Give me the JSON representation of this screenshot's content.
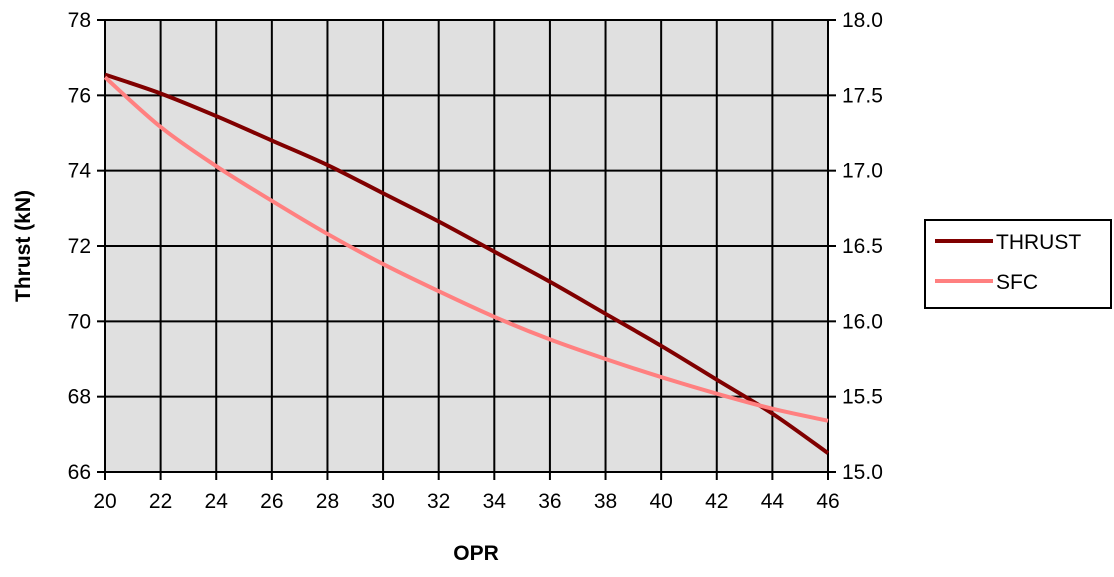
{
  "chart_data": {
    "type": "line",
    "xlabel": "OPR",
    "ylabel": "Thrust (kN)",
    "y2label": "",
    "xlim": [
      20,
      46
    ],
    "ylim": [
      66,
      78
    ],
    "y2lim": [
      15.0,
      18.0
    ],
    "x_ticks": [
      "20",
      "22",
      "24",
      "26",
      "28",
      "30",
      "32",
      "34",
      "36",
      "38",
      "40",
      "42",
      "44",
      "46"
    ],
    "y_ticks": [
      "66",
      "68",
      "70",
      "72",
      "74",
      "76",
      "78"
    ],
    "y2_ticks": [
      "15.0",
      "15.5",
      "16.0",
      "16.5",
      "17.0",
      "17.5",
      "18.0"
    ],
    "grid": true,
    "legend_position": "right",
    "series": [
      {
        "name": "THRUST",
        "axis": "left",
        "color": "#800000",
        "x": [
          20,
          22,
          24,
          26,
          28,
          30,
          32,
          34,
          36,
          38,
          40,
          42,
          44,
          46
        ],
        "values": [
          76.55,
          76.05,
          75.45,
          74.8,
          74.15,
          73.4,
          72.65,
          71.85,
          71.05,
          70.2,
          69.35,
          68.45,
          67.55,
          66.5
        ]
      },
      {
        "name": "SFC",
        "axis": "right",
        "color": "#ff8080",
        "x": [
          20,
          22,
          24,
          26,
          28,
          30,
          32,
          34,
          36,
          38,
          40,
          42,
          44,
          46
        ],
        "values": [
          17.62,
          17.29,
          17.03,
          16.8,
          16.58,
          16.38,
          16.2,
          16.03,
          15.88,
          15.75,
          15.63,
          15.52,
          15.42,
          15.34
        ]
      }
    ]
  }
}
